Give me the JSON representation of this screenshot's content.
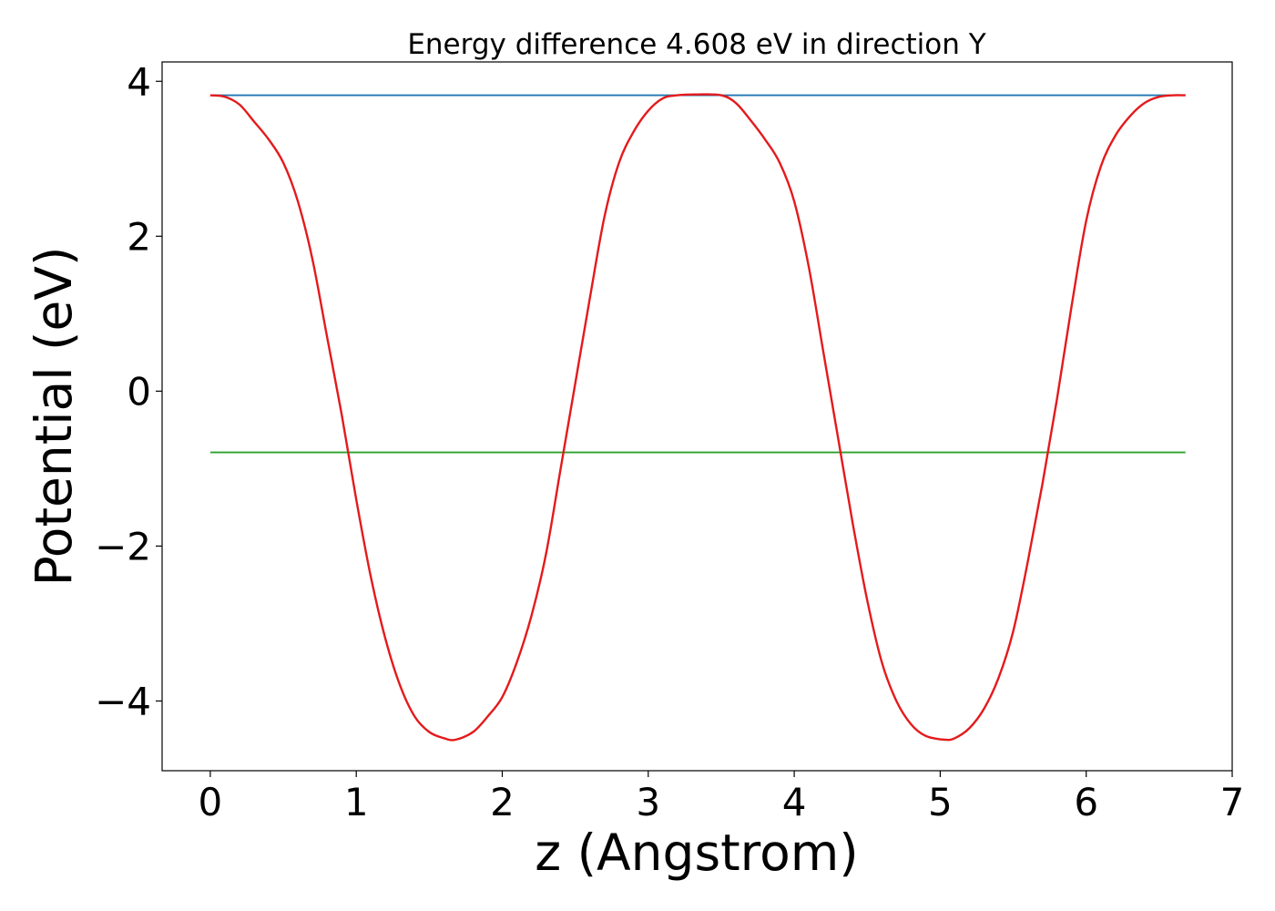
{
  "chart_data": {
    "type": "line",
    "title": "Energy difference 4.608 eV in direction Y",
    "xlabel": "z (Angstrom)",
    "ylabel": "Potential (eV)",
    "xlim": [
      -0.33,
      7.0
    ],
    "ylim": [
      -4.9,
      4.25
    ],
    "xticks": [
      0,
      1,
      2,
      3,
      4,
      5,
      6,
      7
    ],
    "xtick_labels": [
      "0",
      "1",
      "2",
      "3",
      "4",
      "5",
      "6",
      "7"
    ],
    "yticks": [
      -4,
      -2,
      0,
      2,
      4
    ],
    "ytick_labels": [
      "−4",
      "−2",
      "0",
      "2",
      "4"
    ],
    "grid": false,
    "series": [
      {
        "color": "#1f77b4",
        "style": "flat",
        "x": [
          0,
          6.68
        ],
        "y": [
          3.82,
          3.82
        ]
      },
      {
        "color": "#2ca02c",
        "style": "flat",
        "x": [
          0,
          6.68
        ],
        "y": [
          -0.79,
          -0.79
        ]
      },
      {
        "color": "#e41a1c",
        "style": "smooth",
        "x": [
          0,
          0.1,
          0.2,
          0.3,
          0.4,
          0.5,
          0.6,
          0.7,
          0.8,
          0.9,
          1.0,
          1.1,
          1.2,
          1.3,
          1.4,
          1.5,
          1.6,
          1.68,
          1.8,
          1.9,
          2.0,
          2.1,
          2.2,
          2.3,
          2.4,
          2.5,
          2.6,
          2.7,
          2.8,
          2.9,
          3.0,
          3.1,
          3.2,
          3.34,
          3.5,
          3.6,
          3.7,
          3.8,
          3.9,
          4.0,
          4.1,
          4.2,
          4.3,
          4.4,
          4.5,
          4.6,
          4.7,
          4.8,
          4.9,
          5.03,
          5.1,
          5.2,
          5.3,
          5.4,
          5.5,
          5.6,
          5.7,
          5.8,
          5.9,
          6.0,
          6.1,
          6.2,
          6.3,
          6.4,
          6.5,
          6.6,
          6.68
        ],
        "y": [
          3.82,
          3.8,
          3.7,
          3.48,
          3.25,
          2.95,
          2.45,
          1.7,
          0.7,
          -0.3,
          -1.4,
          -2.4,
          -3.2,
          -3.8,
          -4.2,
          -4.4,
          -4.48,
          -4.5,
          -4.4,
          -4.2,
          -3.95,
          -3.5,
          -2.9,
          -2.1,
          -1.0,
          0.1,
          1.2,
          2.25,
          2.95,
          3.35,
          3.62,
          3.78,
          3.82,
          3.83,
          3.82,
          3.72,
          3.5,
          3.25,
          2.95,
          2.45,
          1.6,
          0.5,
          -0.6,
          -1.7,
          -2.7,
          -3.5,
          -4.0,
          -4.3,
          -4.45,
          -4.5,
          -4.48,
          -4.35,
          -4.1,
          -3.7,
          -3.1,
          -2.2,
          -1.2,
          -0.1,
          1.1,
          2.2,
          2.9,
          3.3,
          3.55,
          3.72,
          3.8,
          3.82,
          3.82
        ]
      }
    ]
  }
}
